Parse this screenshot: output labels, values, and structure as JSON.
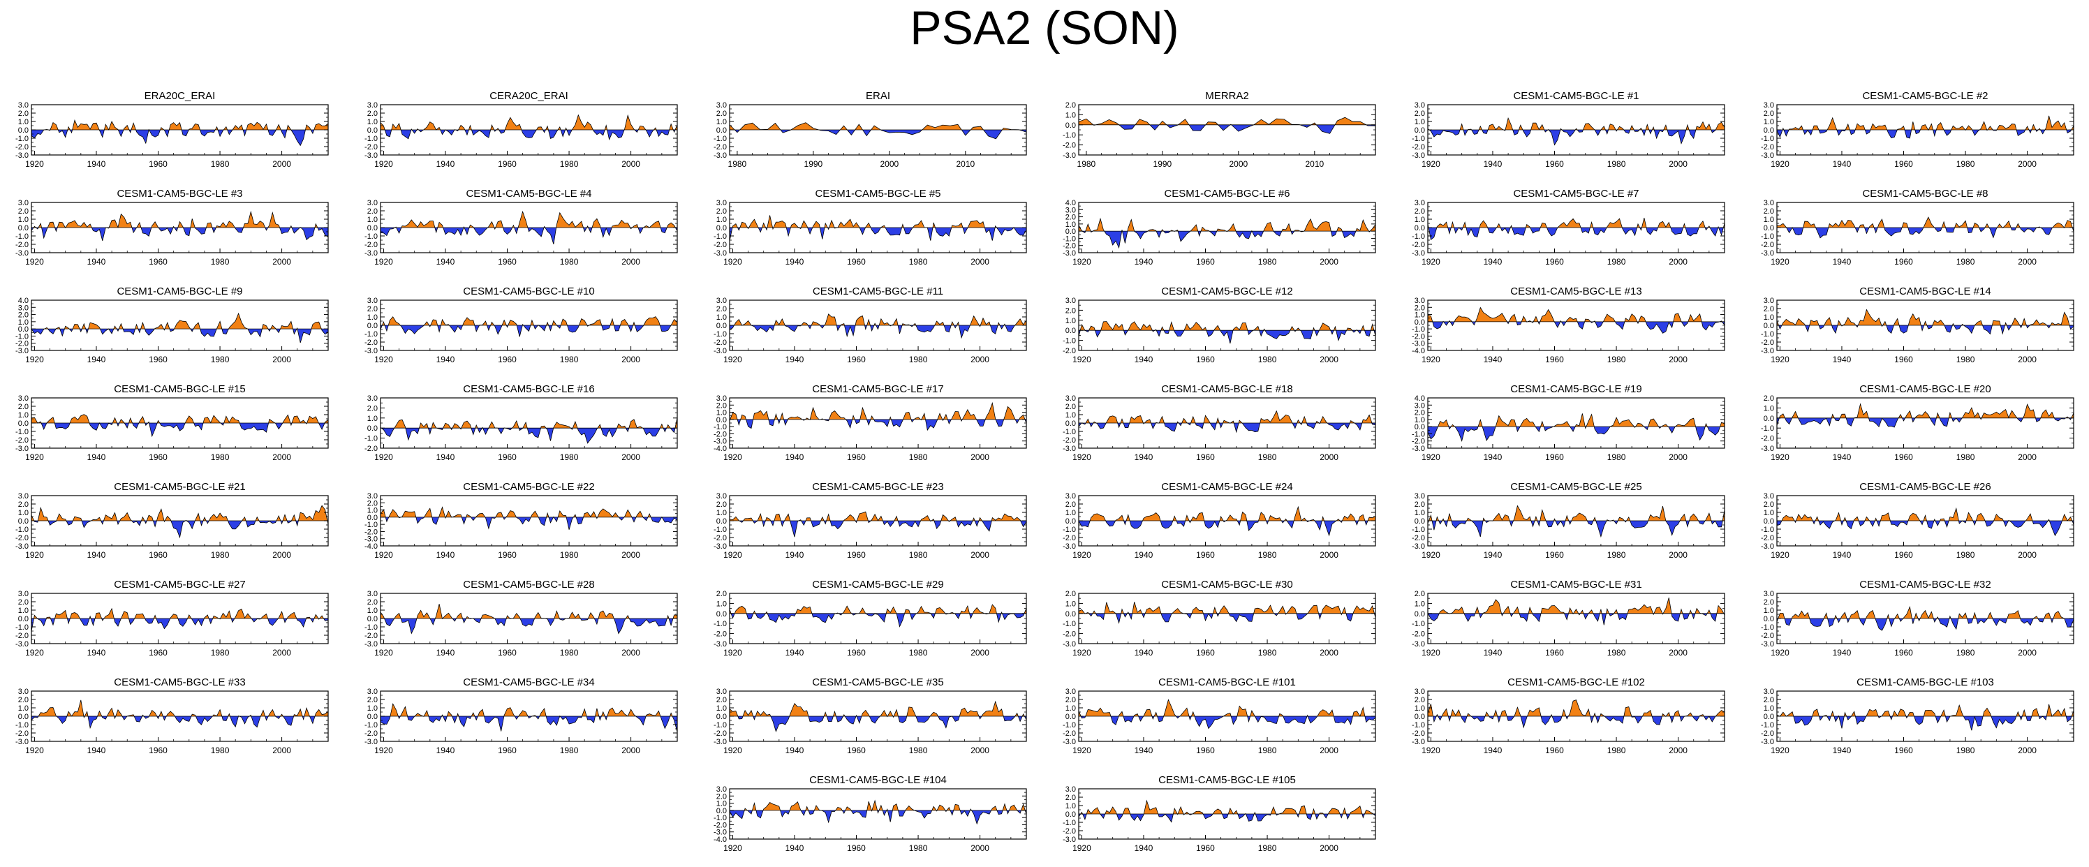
{
  "title": "PSA2 (SON)",
  "colors": {
    "positive": "#f28114",
    "negative": "#2c3fe6",
    "axis": "#000000"
  },
  "chart_data": [
    {
      "type": "area",
      "title": "ERA20C_ERAI",
      "xlim": [
        1919,
        2015
      ],
      "xticks": [
        1920,
        1940,
        1960,
        1980,
        2000
      ],
      "ylim": [
        -3,
        3
      ],
      "yticks": [
        -3,
        -2,
        -1,
        0,
        1,
        2,
        3
      ]
    },
    {
      "type": "area",
      "title": "CERA20C_ERAI",
      "xlim": [
        1919,
        2015
      ],
      "xticks": [
        1920,
        1940,
        1960,
        1980,
        2000
      ],
      "ylim": [
        -3,
        3
      ],
      "yticks": [
        -3,
        -2,
        -1,
        0,
        1,
        2,
        3
      ]
    },
    {
      "type": "area",
      "title": "ERAI",
      "xlim": [
        1979,
        2018
      ],
      "xticks": [
        1980,
        1990,
        2000,
        2010
      ],
      "ylim": [
        -3,
        3
      ],
      "yticks": [
        -3,
        -2,
        -1,
        0,
        1,
        2,
        3
      ]
    },
    {
      "type": "area",
      "title": "MERRA2",
      "xlim": [
        1979,
        2018
      ],
      "xticks": [
        1980,
        1990,
        2000,
        2010
      ],
      "ylim": [
        -3,
        2
      ],
      "yticks": [
        -3,
        -2,
        -1,
        0,
        1,
        2
      ]
    },
    {
      "type": "area",
      "title": "CESM1-CAM5-BGC-LE #1",
      "xlim": [
        1919,
        2015
      ],
      "xticks": [
        1920,
        1940,
        1960,
        1980,
        2000
      ],
      "ylim": [
        -3,
        3
      ],
      "yticks": [
        -3,
        -2,
        -1,
        0,
        1,
        2,
        3
      ]
    },
    {
      "type": "area",
      "title": "CESM1-CAM5-BGC-LE #2",
      "xlim": [
        1919,
        2015
      ],
      "xticks": [
        1920,
        1940,
        1960,
        1980,
        2000
      ],
      "ylim": [
        -3,
        3
      ],
      "yticks": [
        -3,
        -2,
        -1,
        0,
        1,
        2,
        3
      ]
    },
    {
      "type": "area",
      "title": "CESM1-CAM5-BGC-LE #3",
      "xlim": [
        1919,
        2015
      ],
      "xticks": [
        1920,
        1940,
        1960,
        1980,
        2000
      ],
      "ylim": [
        -3,
        3
      ],
      "yticks": [
        -3,
        -2,
        -1,
        0,
        1,
        2,
        3
      ]
    },
    {
      "type": "area",
      "title": "CESM1-CAM5-BGC-LE #4",
      "xlim": [
        1919,
        2015
      ],
      "xticks": [
        1920,
        1940,
        1960,
        1980,
        2000
      ],
      "ylim": [
        -3,
        3
      ],
      "yticks": [
        -3,
        -2,
        -1,
        0,
        1,
        2,
        3
      ]
    },
    {
      "type": "area",
      "title": "CESM1-CAM5-BGC-LE #5",
      "xlim": [
        1919,
        2015
      ],
      "xticks": [
        1920,
        1940,
        1960,
        1980,
        2000
      ],
      "ylim": [
        -3,
        3
      ],
      "yticks": [
        -3,
        -2,
        -1,
        0,
        1,
        2,
        3
      ]
    },
    {
      "type": "area",
      "title": "CESM1-CAM5-BGC-LE #6",
      "xlim": [
        1919,
        2015
      ],
      "xticks": [
        1920,
        1940,
        1960,
        1980,
        2000
      ],
      "ylim": [
        -3,
        4
      ],
      "yticks": [
        -3,
        -2,
        -1,
        0,
        1,
        2,
        3,
        4
      ]
    },
    {
      "type": "area",
      "title": "CESM1-CAM5-BGC-LE #7",
      "xlim": [
        1919,
        2015
      ],
      "xticks": [
        1920,
        1940,
        1960,
        1980,
        2000
      ],
      "ylim": [
        -3,
        3
      ],
      "yticks": [
        -3,
        -2,
        -1,
        0,
        1,
        2,
        3
      ]
    },
    {
      "type": "area",
      "title": "CESM1-CAM5-BGC-LE #8",
      "xlim": [
        1919,
        2015
      ],
      "xticks": [
        1920,
        1940,
        1960,
        1980,
        2000
      ],
      "ylim": [
        -3,
        3
      ],
      "yticks": [
        -3,
        -2,
        -1,
        0,
        1,
        2,
        3
      ]
    },
    {
      "type": "area",
      "title": "CESM1-CAM5-BGC-LE #9",
      "xlim": [
        1919,
        2015
      ],
      "xticks": [
        1920,
        1940,
        1960,
        1980,
        2000
      ],
      "ylim": [
        -3,
        4
      ],
      "yticks": [
        -3,
        -2,
        -1,
        0,
        1,
        2,
        3,
        4
      ]
    },
    {
      "type": "area",
      "title": "CESM1-CAM5-BGC-LE #10",
      "xlim": [
        1919,
        2015
      ],
      "xticks": [
        1920,
        1940,
        1960,
        1980,
        2000
      ],
      "ylim": [
        -3,
        3
      ],
      "yticks": [
        -3,
        -2,
        -1,
        0,
        1,
        2,
        3
      ]
    },
    {
      "type": "area",
      "title": "CESM1-CAM5-BGC-LE #11",
      "xlim": [
        1919,
        2015
      ],
      "xticks": [
        1920,
        1940,
        1960,
        1980,
        2000
      ],
      "ylim": [
        -3,
        3
      ],
      "yticks": [
        -3,
        -2,
        -1,
        0,
        1,
        2,
        3
      ]
    },
    {
      "type": "area",
      "title": "CESM1-CAM5-BGC-LE #12",
      "xlim": [
        1919,
        2015
      ],
      "xticks": [
        1920,
        1940,
        1960,
        1980,
        2000
      ],
      "ylim": [
        -2,
        3
      ],
      "yticks": [
        -2,
        -1,
        0,
        1,
        2,
        3
      ]
    },
    {
      "type": "area",
      "title": "CESM1-CAM5-BGC-LE #13",
      "xlim": [
        1919,
        2015
      ],
      "xticks": [
        1920,
        1940,
        1960,
        1980,
        2000
      ],
      "ylim": [
        -4,
        3
      ],
      "yticks": [
        -4,
        -3,
        -2,
        -1,
        0,
        1,
        2,
        3
      ]
    },
    {
      "type": "area",
      "title": "CESM1-CAM5-BGC-LE #14",
      "xlim": [
        1919,
        2015
      ],
      "xticks": [
        1920,
        1940,
        1960,
        1980,
        2000
      ],
      "ylim": [
        -3,
        3
      ],
      "yticks": [
        -3,
        -2,
        -1,
        0,
        1,
        2,
        3
      ]
    },
    {
      "type": "area",
      "title": "CESM1-CAM5-BGC-LE #15",
      "xlim": [
        1919,
        2015
      ],
      "xticks": [
        1920,
        1940,
        1960,
        1980,
        2000
      ],
      "ylim": [
        -3,
        3
      ],
      "yticks": [
        -3,
        -2,
        -1,
        0,
        1,
        2,
        3
      ]
    },
    {
      "type": "area",
      "title": "CESM1-CAM5-BGC-LE #16",
      "xlim": [
        1919,
        2015
      ],
      "xticks": [
        1920,
        1940,
        1960,
        1980,
        2000
      ],
      "ylim": [
        -2,
        3
      ],
      "yticks": [
        -2,
        -1,
        0,
        1,
        2,
        3
      ]
    },
    {
      "type": "area",
      "title": "CESM1-CAM5-BGC-LE #17",
      "xlim": [
        1919,
        2015
      ],
      "xticks": [
        1920,
        1940,
        1960,
        1980,
        2000
      ],
      "ylim": [
        -4,
        3
      ],
      "yticks": [
        -4,
        -3,
        -2,
        -1,
        0,
        1,
        2,
        3
      ]
    },
    {
      "type": "area",
      "title": "CESM1-CAM5-BGC-LE #18",
      "xlim": [
        1919,
        2015
      ],
      "xticks": [
        1920,
        1940,
        1960,
        1980,
        2000
      ],
      "ylim": [
        -3,
        3
      ],
      "yticks": [
        -3,
        -2,
        -1,
        0,
        1,
        2,
        3
      ]
    },
    {
      "type": "area",
      "title": "CESM1-CAM5-BGC-LE #19",
      "xlim": [
        1919,
        2015
      ],
      "xticks": [
        1920,
        1940,
        1960,
        1980,
        2000
      ],
      "ylim": [
        -3,
        4
      ],
      "yticks": [
        -3,
        -2,
        -1,
        0,
        1,
        2,
        3,
        4
      ]
    },
    {
      "type": "area",
      "title": "CESM1-CAM5-BGC-LE #20",
      "xlim": [
        1919,
        2015
      ],
      "xticks": [
        1920,
        1940,
        1960,
        1980,
        2000
      ],
      "ylim": [
        -3,
        2
      ],
      "yticks": [
        -3,
        -2,
        -1,
        0,
        1,
        2
      ]
    },
    {
      "type": "area",
      "title": "CESM1-CAM5-BGC-LE #21",
      "xlim": [
        1919,
        2015
      ],
      "xticks": [
        1920,
        1940,
        1960,
        1980,
        2000
      ],
      "ylim": [
        -3,
        3
      ],
      "yticks": [
        -3,
        -2,
        -1,
        0,
        1,
        2,
        3
      ]
    },
    {
      "type": "area",
      "title": "CESM1-CAM5-BGC-LE #22",
      "xlim": [
        1919,
        2015
      ],
      "xticks": [
        1920,
        1940,
        1960,
        1980,
        2000
      ],
      "ylim": [
        -4,
        3
      ],
      "yticks": [
        -4,
        -3,
        -2,
        -1,
        0,
        1,
        2,
        3
      ]
    },
    {
      "type": "area",
      "title": "CESM1-CAM5-BGC-LE #23",
      "xlim": [
        1919,
        2015
      ],
      "xticks": [
        1920,
        1940,
        1960,
        1980,
        2000
      ],
      "ylim": [
        -3,
        3
      ],
      "yticks": [
        -3,
        -2,
        -1,
        0,
        1,
        2,
        3
      ]
    },
    {
      "type": "area",
      "title": "CESM1-CAM5-BGC-LE #24",
      "xlim": [
        1919,
        2015
      ],
      "xticks": [
        1920,
        1940,
        1960,
        1980,
        2000
      ],
      "ylim": [
        -3,
        3
      ],
      "yticks": [
        -3,
        -2,
        -1,
        0,
        1,
        2,
        3
      ]
    },
    {
      "type": "area",
      "title": "CESM1-CAM5-BGC-LE #25",
      "xlim": [
        1919,
        2015
      ],
      "xticks": [
        1920,
        1940,
        1960,
        1980,
        2000
      ],
      "ylim": [
        -3,
        3
      ],
      "yticks": [
        -3,
        -2,
        -1,
        0,
        1,
        2,
        3
      ]
    },
    {
      "type": "area",
      "title": "CESM1-CAM5-BGC-LE #26",
      "xlim": [
        1919,
        2015
      ],
      "xticks": [
        1920,
        1940,
        1960,
        1980,
        2000
      ],
      "ylim": [
        -3,
        3
      ],
      "yticks": [
        -3,
        -2,
        -1,
        0,
        1,
        2,
        3
      ]
    },
    {
      "type": "area",
      "title": "CESM1-CAM5-BGC-LE #27",
      "xlim": [
        1919,
        2015
      ],
      "xticks": [
        1920,
        1940,
        1960,
        1980,
        2000
      ],
      "ylim": [
        -3,
        3
      ],
      "yticks": [
        -3,
        -2,
        -1,
        0,
        1,
        2,
        3
      ]
    },
    {
      "type": "area",
      "title": "CESM1-CAM5-BGC-LE #28",
      "xlim": [
        1919,
        2015
      ],
      "xticks": [
        1920,
        1940,
        1960,
        1980,
        2000
      ],
      "ylim": [
        -3,
        3
      ],
      "yticks": [
        -3,
        -2,
        -1,
        0,
        1,
        2,
        3
      ]
    },
    {
      "type": "area",
      "title": "CESM1-CAM5-BGC-LE #29",
      "xlim": [
        1919,
        2015
      ],
      "xticks": [
        1920,
        1940,
        1960,
        1980,
        2000
      ],
      "ylim": [
        -3,
        2
      ],
      "yticks": [
        -3,
        -2,
        -1,
        0,
        1,
        2
      ]
    },
    {
      "type": "area",
      "title": "CESM1-CAM5-BGC-LE #30",
      "xlim": [
        1919,
        2015
      ],
      "xticks": [
        1920,
        1940,
        1960,
        1980,
        2000
      ],
      "ylim": [
        -3,
        2
      ],
      "yticks": [
        -3,
        -2,
        -1,
        0,
        1,
        2
      ]
    },
    {
      "type": "area",
      "title": "CESM1-CAM5-BGC-LE #31",
      "xlim": [
        1919,
        2015
      ],
      "xticks": [
        1920,
        1940,
        1960,
        1980,
        2000
      ],
      "ylim": [
        -3,
        2
      ],
      "yticks": [
        -3,
        -2,
        -1,
        0,
        1,
        2
      ]
    },
    {
      "type": "area",
      "title": "CESM1-CAM5-BGC-LE #32",
      "xlim": [
        1919,
        2015
      ],
      "xticks": [
        1920,
        1940,
        1960,
        1980,
        2000
      ],
      "ylim": [
        -3,
        3
      ],
      "yticks": [
        -3,
        -2,
        -1,
        0,
        1,
        2,
        3
      ]
    },
    {
      "type": "area",
      "title": "CESM1-CAM5-BGC-LE #33",
      "xlim": [
        1919,
        2015
      ],
      "xticks": [
        1920,
        1940,
        1960,
        1980,
        2000
      ],
      "ylim": [
        -3,
        3
      ],
      "yticks": [
        -3,
        -2,
        -1,
        0,
        1,
        2,
        3
      ]
    },
    {
      "type": "area",
      "title": "CESM1-CAM5-BGC-LE #34",
      "xlim": [
        1919,
        2015
      ],
      "xticks": [
        1920,
        1940,
        1960,
        1980,
        2000
      ],
      "ylim": [
        -3,
        3
      ],
      "yticks": [
        -3,
        -2,
        -1,
        0,
        1,
        2,
        3
      ]
    },
    {
      "type": "area",
      "title": "CESM1-CAM5-BGC-LE #35",
      "xlim": [
        1919,
        2015
      ],
      "xticks": [
        1920,
        1940,
        1960,
        1980,
        2000
      ],
      "ylim": [
        -3,
        3
      ],
      "yticks": [
        -3,
        -2,
        -1,
        0,
        1,
        2,
        3
      ]
    },
    {
      "type": "area",
      "title": "CESM1-CAM5-BGC-LE #101",
      "xlim": [
        1919,
        2015
      ],
      "xticks": [
        1920,
        1940,
        1960,
        1980,
        2000
      ],
      "ylim": [
        -3,
        3
      ],
      "yticks": [
        -3,
        -2,
        -1,
        0,
        1,
        2,
        3
      ]
    },
    {
      "type": "area",
      "title": "CESM1-CAM5-BGC-LE #102",
      "xlim": [
        1919,
        2015
      ],
      "xticks": [
        1920,
        1940,
        1960,
        1980,
        2000
      ],
      "ylim": [
        -3,
        3
      ],
      "yticks": [
        -3,
        -2,
        -1,
        0,
        1,
        2,
        3
      ]
    },
    {
      "type": "area",
      "title": "CESM1-CAM5-BGC-LE #103",
      "xlim": [
        1919,
        2015
      ],
      "xticks": [
        1920,
        1940,
        1960,
        1980,
        2000
      ],
      "ylim": [
        -3,
        3
      ],
      "yticks": [
        -3,
        -2,
        -1,
        0,
        1,
        2,
        3
      ]
    },
    {
      "type": "area",
      "title": "CESM1-CAM5-BGC-LE #104",
      "xlim": [
        1919,
        2015
      ],
      "xticks": [
        1920,
        1940,
        1960,
        1980,
        2000
      ],
      "ylim": [
        -4,
        3
      ],
      "yticks": [
        -4,
        -3,
        -2,
        -1,
        0,
        1,
        2,
        3
      ]
    },
    {
      "type": "area",
      "title": "CESM1-CAM5-BGC-LE #105",
      "xlim": [
        1919,
        2015
      ],
      "xticks": [
        1920,
        1940,
        1960,
        1980,
        2000
      ],
      "ylim": [
        -3,
        3
      ],
      "yticks": [
        -3,
        -2,
        -1,
        0,
        1,
        2,
        3
      ]
    }
  ]
}
